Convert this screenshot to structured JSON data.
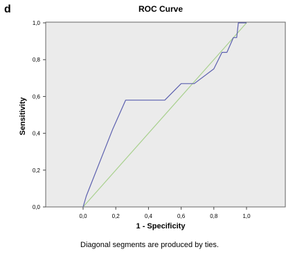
{
  "panel_letter": "d",
  "chart_data": {
    "type": "line",
    "title": "ROC Curve",
    "xlabel": "1 - Specificity",
    "ylabel": "Sensitivity",
    "caption": "Diagonal segments are produced by ties.",
    "xlim": [
      0.0,
      1.0
    ],
    "ylim": [
      0.0,
      1.0
    ],
    "x_ticks": [
      "0,0",
      "0,2",
      "0,4",
      "0,6",
      "0,8",
      "1,0"
    ],
    "y_ticks": [
      "0,0",
      "0,2",
      "0,4",
      "0,6",
      "0,8",
      "1,0"
    ],
    "grid": false,
    "colors": {
      "plot_background": "#ebebeb",
      "roc_curve": "#5b5fae",
      "reference_line": "#a8d08d"
    },
    "series": [
      {
        "x": [
          0.0,
          0.02,
          0.1,
          0.18,
          0.26,
          0.5,
          0.6,
          0.68,
          0.8,
          0.85,
          0.88,
          0.92,
          0.94,
          0.95,
          0.97,
          1.0
        ],
        "y": [
          0.0,
          0.06,
          0.24,
          0.42,
          0.58,
          0.58,
          0.67,
          0.67,
          0.75,
          0.84,
          0.84,
          0.92,
          0.92,
          1.0,
          1.0,
          1.0
        ]
      },
      {
        "x": [
          0.0,
          1.0
        ],
        "y": [
          0.0,
          1.0
        ]
      }
    ]
  }
}
